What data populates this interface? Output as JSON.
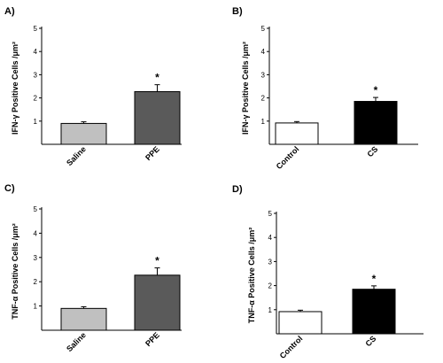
{
  "chart_data": [
    {
      "type": "bar",
      "panel_label": "A)",
      "ylabel": "IFN-γ Positive Cells /μm²",
      "categories": [
        "Saline",
        "PPE"
      ],
      "values": [
        0.9,
        2.27
      ],
      "errors": [
        0.07,
        0.3
      ],
      "significance": [
        "",
        "*"
      ],
      "bar_colors": [
        "#c0c0c0",
        "#5a5a5a"
      ],
      "ylim": [
        0,
        5
      ],
      "yticks": [
        "1",
        "2",
        "3",
        "4",
        "5"
      ],
      "grid": false
    },
    {
      "type": "bar",
      "panel_label": "B)",
      "ylabel": "IFN-γ Positive Cells /μm²",
      "categories": [
        "Control",
        "CS"
      ],
      "values": [
        0.92,
        1.85
      ],
      "errors": [
        0.06,
        0.17
      ],
      "significance": [
        "",
        "*"
      ],
      "bar_colors": [
        "#ffffff",
        "#000000"
      ],
      "ylim": [
        0,
        5
      ],
      "yticks": [
        "1",
        "2",
        "3",
        "4",
        "5"
      ],
      "grid": false
    },
    {
      "type": "bar",
      "panel_label": "C)",
      "ylabel": "TNF-α Positive Cells /μm²",
      "categories": [
        "Saline",
        "PPE"
      ],
      "values": [
        0.9,
        2.27
      ],
      "errors": [
        0.07,
        0.3
      ],
      "significance": [
        "",
        "*"
      ],
      "bar_colors": [
        "#c0c0c0",
        "#5a5a5a"
      ],
      "ylim": [
        0,
        5
      ],
      "yticks": [
        "1",
        "2",
        "3",
        "4",
        "5"
      ],
      "grid": false
    },
    {
      "type": "bar",
      "panel_label": "D)",
      "ylabel": "TNF-α Positive Cells /μm²",
      "categories": [
        "Control",
        "CS"
      ],
      "values": [
        0.92,
        1.85
      ],
      "errors": [
        0.06,
        0.14
      ],
      "significance": [
        "",
        "*"
      ],
      "bar_colors": [
        "#ffffff",
        "#000000"
      ],
      "ylim": [
        0,
        5
      ],
      "yticks": [
        "1",
        "2",
        "3",
        "4",
        "5"
      ],
      "grid": false
    }
  ]
}
